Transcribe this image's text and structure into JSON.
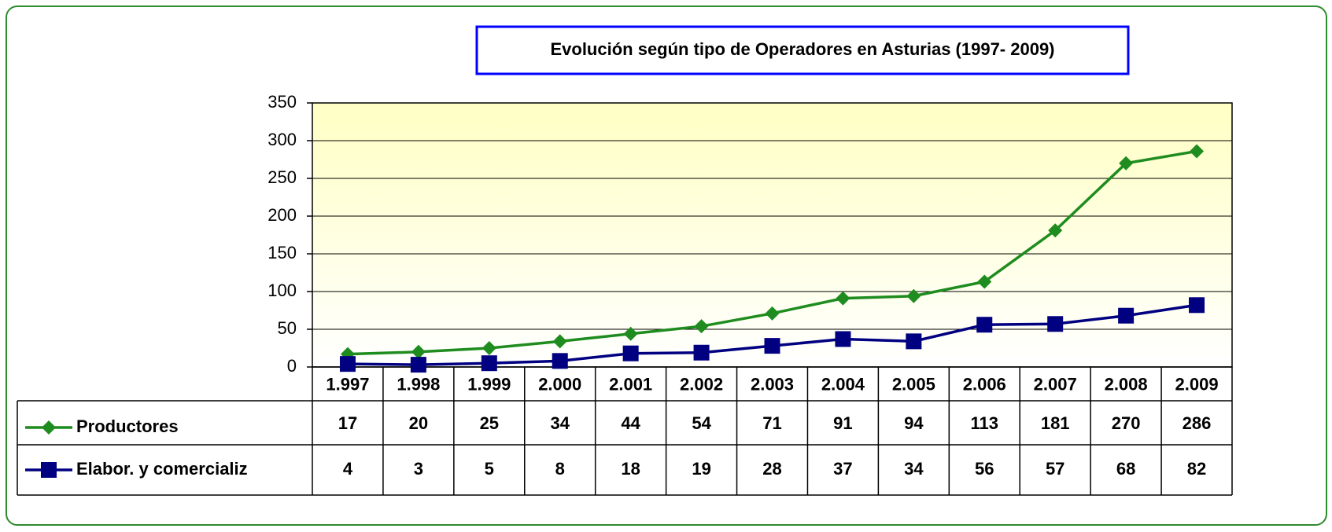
{
  "chart_data": {
    "type": "line",
    "title": "Evolución según tipo de Operadores en Asturias (1997- 2009)",
    "categories": [
      "1.997",
      "1.998",
      "1.999",
      "2.000",
      "2.001",
      "2.002",
      "2.003",
      "2.004",
      "2.005",
      "2.006",
      "2.007",
      "2.008",
      "2.009"
    ],
    "series": [
      {
        "name": "Productores",
        "color": "#1e8c1e",
        "marker": "diamond",
        "values": [
          17,
          20,
          25,
          34,
          44,
          54,
          71,
          91,
          94,
          113,
          181,
          270,
          286
        ]
      },
      {
        "name": "Elabor. y comercializ",
        "color": "#000080",
        "marker": "square",
        "values": [
          4,
          3,
          5,
          8,
          18,
          19,
          28,
          37,
          34,
          56,
          57,
          68,
          82
        ]
      }
    ],
    "ylim": [
      0,
      350
    ],
    "yticks": [
      0,
      50,
      100,
      150,
      200,
      250,
      300,
      350
    ],
    "grid": true,
    "data_table": true
  }
}
